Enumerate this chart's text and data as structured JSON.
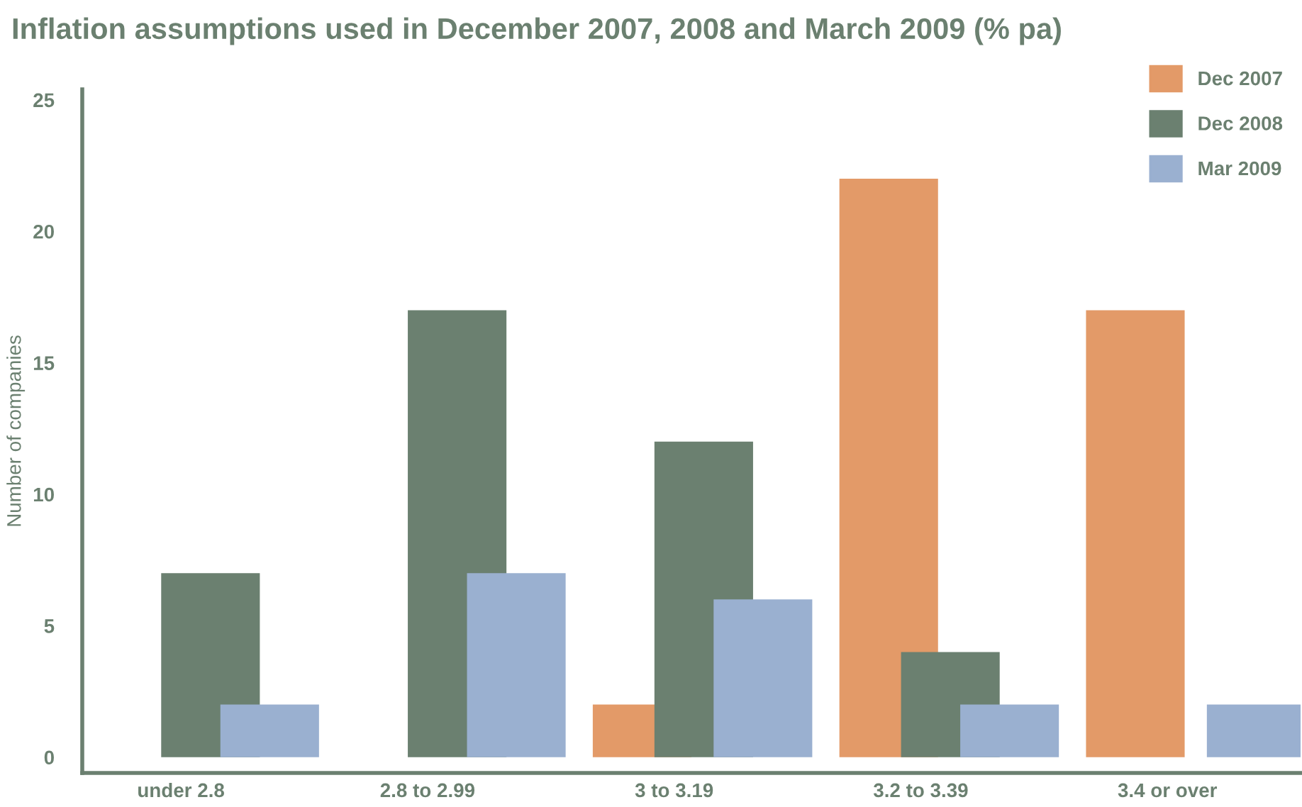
{
  "chart_data": {
    "type": "bar",
    "title": "Inflation assumptions used in December 2007, 2008 and March 2009 (% pa)",
    "ylabel": "Number of companies",
    "categories": [
      "under 2.8",
      "2.8 to 2.99",
      "3 to 3.19",
      "3.2 to 3.39",
      "3.4 or over"
    ],
    "series": [
      {
        "name": "Dec 2007",
        "color": "#e39a68",
        "values": [
          0,
          0,
          2,
          22,
          17
        ]
      },
      {
        "name": "Dec 2008",
        "color": "#6b8070",
        "values": [
          7,
          17,
          12,
          4,
          0
        ]
      },
      {
        "name": "Mar 2009",
        "color": "#9ab0d0",
        "values": [
          2,
          7,
          6,
          2,
          2
        ]
      }
    ],
    "ylim": [
      -0.6,
      25.4
    ],
    "yticks": [
      0,
      5,
      10,
      15,
      20,
      25
    ],
    "grid": false,
    "legend": "top right"
  }
}
